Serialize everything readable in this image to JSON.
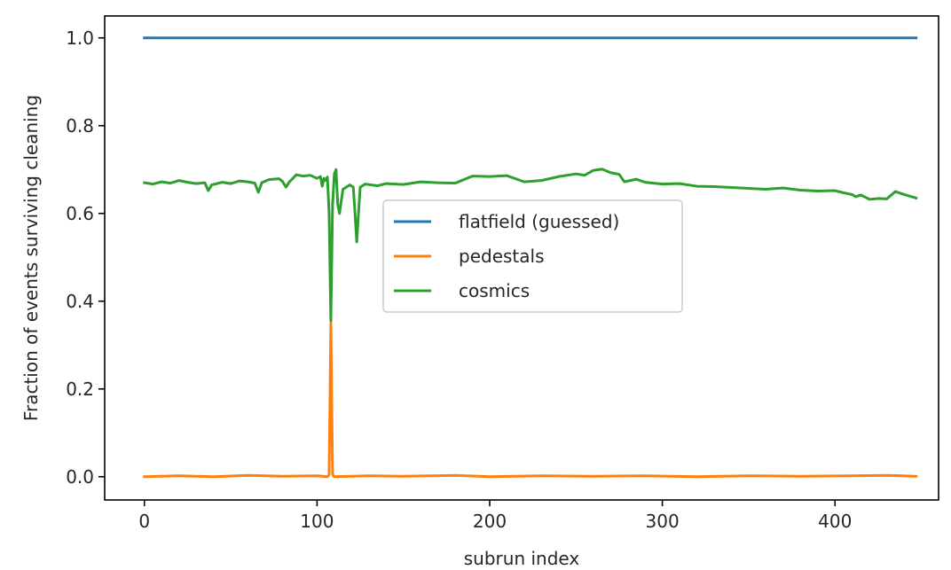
{
  "chart_data": {
    "type": "line",
    "title": "",
    "xlabel": "subrun index",
    "ylabel": "Fraction of events surviving cleaning",
    "xlim": [
      -23,
      460
    ],
    "ylim": [
      -0.053,
      1.05
    ],
    "xticks": [
      0,
      100,
      200,
      300,
      400
    ],
    "xtick_labels": [
      "0",
      "100",
      "200",
      "300",
      "400"
    ],
    "yticks": [
      0.0,
      0.2,
      0.4,
      0.6,
      0.8,
      1.0
    ],
    "ytick_labels": [
      "0.0",
      "0.2",
      "0.4",
      "0.6",
      "0.8",
      "1.0"
    ],
    "grid": false,
    "legend_position": "center",
    "series": [
      {
        "name": "flatfield (guessed)",
        "color": "#1f77b4",
        "points": [
          [
            0,
            1.0
          ],
          [
            447,
            1.0
          ]
        ]
      },
      {
        "name": "pedestals",
        "color": "#ff7f0e",
        "points": [
          [
            0,
            0.0
          ],
          [
            20,
            0.002
          ],
          [
            40,
            0.0
          ],
          [
            60,
            0.003
          ],
          [
            80,
            0.001
          ],
          [
            100,
            0.002
          ],
          [
            106,
            0.0
          ],
          [
            107,
            0.005
          ],
          [
            108,
            0.35
          ],
          [
            109,
            0.005
          ],
          [
            110,
            0.0
          ],
          [
            130,
            0.002
          ],
          [
            150,
            0.001
          ],
          [
            180,
            0.003
          ],
          [
            200,
            0.0
          ],
          [
            230,
            0.002
          ],
          [
            260,
            0.001
          ],
          [
            290,
            0.002
          ],
          [
            320,
            0.0
          ],
          [
            350,
            0.002
          ],
          [
            380,
            0.001
          ],
          [
            410,
            0.002
          ],
          [
            430,
            0.003
          ],
          [
            447,
            0.001
          ]
        ]
      },
      {
        "name": "cosmics",
        "color": "#2ca02c",
        "points": [
          [
            0,
            0.67
          ],
          [
            5,
            0.667
          ],
          [
            10,
            0.672
          ],
          [
            15,
            0.669
          ],
          [
            20,
            0.675
          ],
          [
            25,
            0.671
          ],
          [
            30,
            0.668
          ],
          [
            35,
            0.67
          ],
          [
            37,
            0.652
          ],
          [
            39,
            0.665
          ],
          [
            45,
            0.671
          ],
          [
            50,
            0.668
          ],
          [
            55,
            0.674
          ],
          [
            60,
            0.672
          ],
          [
            64,
            0.669
          ],
          [
            66,
            0.648
          ],
          [
            68,
            0.67
          ],
          [
            72,
            0.677
          ],
          [
            78,
            0.679
          ],
          [
            80,
            0.673
          ],
          [
            82,
            0.66
          ],
          [
            84,
            0.672
          ],
          [
            88,
            0.688
          ],
          [
            92,
            0.685
          ],
          [
            96,
            0.687
          ],
          [
            100,
            0.68
          ],
          [
            102,
            0.684
          ],
          [
            103,
            0.662
          ],
          [
            104,
            0.68
          ],
          [
            105,
            0.675
          ],
          [
            106,
            0.683
          ],
          [
            107,
            0.6
          ],
          [
            108,
            0.355
          ],
          [
            109,
            0.62
          ],
          [
            110,
            0.69
          ],
          [
            111,
            0.7
          ],
          [
            112,
            0.62
          ],
          [
            113,
            0.6
          ],
          [
            115,
            0.655
          ],
          [
            117,
            0.66
          ],
          [
            119,
            0.665
          ],
          [
            121,
            0.66
          ],
          [
            122,
            0.6
          ],
          [
            123,
            0.535
          ],
          [
            124,
            0.6
          ],
          [
            125,
            0.66
          ],
          [
            128,
            0.667
          ],
          [
            135,
            0.663
          ],
          [
            140,
            0.668
          ],
          [
            150,
            0.666
          ],
          [
            160,
            0.672
          ],
          [
            170,
            0.67
          ],
          [
            180,
            0.669
          ],
          [
            190,
            0.685
          ],
          [
            200,
            0.684
          ],
          [
            210,
            0.686
          ],
          [
            220,
            0.672
          ],
          [
            230,
            0.675
          ],
          [
            240,
            0.684
          ],
          [
            250,
            0.69
          ],
          [
            255,
            0.687
          ],
          [
            260,
            0.698
          ],
          [
            265,
            0.701
          ],
          [
            270,
            0.693
          ],
          [
            275,
            0.689
          ],
          [
            278,
            0.672
          ],
          [
            285,
            0.678
          ],
          [
            290,
            0.671
          ],
          [
            300,
            0.667
          ],
          [
            310,
            0.668
          ],
          [
            320,
            0.662
          ],
          [
            330,
            0.661
          ],
          [
            340,
            0.659
          ],
          [
            350,
            0.657
          ],
          [
            360,
            0.655
          ],
          [
            370,
            0.658
          ],
          [
            380,
            0.653
          ],
          [
            390,
            0.651
          ],
          [
            400,
            0.652
          ],
          [
            405,
            0.647
          ],
          [
            410,
            0.643
          ],
          [
            412,
            0.638
          ],
          [
            415,
            0.642
          ],
          [
            420,
            0.632
          ],
          [
            425,
            0.634
          ],
          [
            430,
            0.633
          ],
          [
            435,
            0.65
          ],
          [
            440,
            0.643
          ],
          [
            447,
            0.635
          ]
        ]
      }
    ]
  }
}
